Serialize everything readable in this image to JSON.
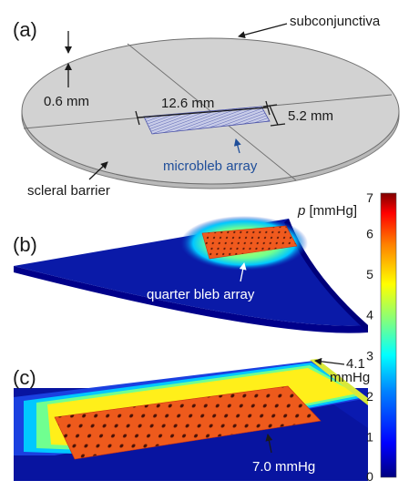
{
  "panels": {
    "a": {
      "label": "(a)",
      "subconjunctiva": "subconjunctiva",
      "thickness": "0.6 mm",
      "length": "12.6 mm",
      "width": "5.2 mm",
      "microbleb": "microbleb array",
      "scleral": "scleral barrier"
    },
    "b": {
      "label": "(b)",
      "quarter": "quarter bleb array"
    },
    "c": {
      "label": "(c)",
      "edge_value": "4.1",
      "edge_unit": "mmHg",
      "max_value": "7.0 mmHg"
    }
  },
  "colorbar": {
    "var": "p",
    "unit": " [mmHg]",
    "ticks": [
      "7",
      "6",
      "5",
      "4",
      "3",
      "2",
      "1",
      "0"
    ],
    "min": 0,
    "max": 7,
    "colors": [
      "#00007f",
      "#0000ff",
      "#0080ff",
      "#00ffff",
      "#80ff80",
      "#ffff00",
      "#ff8000",
      "#ff0000",
      "#7f0000"
    ]
  }
}
